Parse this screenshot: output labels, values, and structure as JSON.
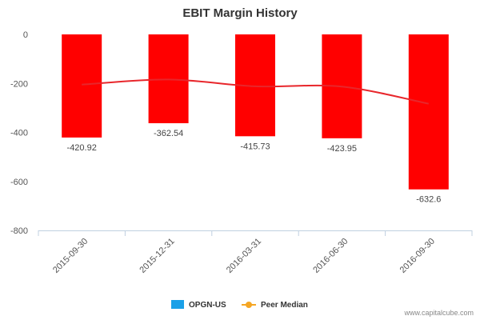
{
  "chart_data": {
    "type": "bar",
    "title": "EBIT Margin History",
    "categories": [
      "2015-09-30",
      "2015-12-31",
      "2016-03-31",
      "2016-06-30",
      "2016-09-30"
    ],
    "series": [
      {
        "name": "OPGN-US",
        "type": "bar",
        "values": [
          -420.92,
          -362.54,
          -415.73,
          -423.95,
          -632.6
        ]
      },
      {
        "name": "Peer Median",
        "type": "line",
        "values": [
          -205,
          -184,
          -212,
          -213,
          -283
        ]
      }
    ],
    "data_labels": [
      "-420.92",
      "-362.54",
      "-415.73",
      "-423.95",
      "-632.6"
    ],
    "ylim": [
      -800,
      0
    ],
    "yticks": [
      0,
      -200,
      -400,
      -600,
      -800
    ],
    "grid": false,
    "legend_position": "bottom-center",
    "colors": {
      "bar": "#ff0000",
      "peer_line": "#e8262b",
      "legend_opgn": "#1aa0e8",
      "legend_peer": "#f5a623"
    }
  },
  "credit": "www.capitalcube.com"
}
